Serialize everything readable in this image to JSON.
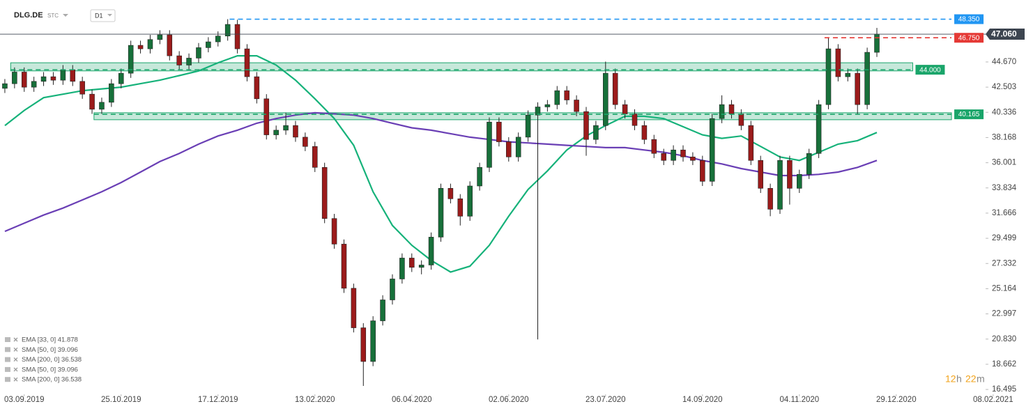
{
  "header": {
    "symbol": "DLG.DE",
    "market": "STC",
    "interval": "D1"
  },
  "countdown": {
    "hours": "12",
    "hours_unit": "h",
    "minutes": "22",
    "minutes_unit": "m"
  },
  "chart_data": {
    "type": "candlestick",
    "xlim": [
      -0.5,
      105.25
    ],
    "ylim": [
      16.08,
      49.88
    ],
    "xticks": [
      {
        "value": 2,
        "label": "03.09.2019"
      },
      {
        "value": 12,
        "label": "25.10.2019"
      },
      {
        "value": 22,
        "label": "17.12.2019"
      },
      {
        "value": 32,
        "label": "13.02.2020"
      },
      {
        "value": 42,
        "label": "06.04.2020"
      },
      {
        "value": 52,
        "label": "02.06.2020"
      },
      {
        "value": 62,
        "label": "23.07.2020"
      },
      {
        "value": 72,
        "label": "14.09.2020"
      },
      {
        "value": 82,
        "label": "04.11.2020"
      },
      {
        "value": 92,
        "label": "29.12.2020"
      },
      {
        "value": 102,
        "label": "08.02.2021"
      }
    ],
    "yticks": [
      16.495,
      18.662,
      {
        "value": 20.83,
        "label": "20.830"
      },
      22.997,
      25.164,
      27.332,
      29.499,
      31.666,
      33.834,
      36.001,
      38.168,
      40.336,
      42.503,
      {
        "value": 44.67,
        "label": "44.670"
      }
    ],
    "up_color": "#17703a",
    "down_color": "#9b1b1b",
    "open": [
      42.4,
      42.8,
      43.8,
      42.5,
      43.0,
      43.4,
      43.1,
      44.0,
      43.0,
      41.9,
      40.6,
      41.2,
      42.8,
      43.7,
      46.1,
      45.8,
      46.6,
      47.0,
      45.2,
      44.4,
      45.0,
      45.9,
      46.4,
      46.9,
      47.9,
      45.8,
      43.4,
      41.5,
      38.4,
      38.8,
      39.2,
      38.2,
      37.4,
      35.6,
      31.2,
      29.0,
      25.2,
      21.8,
      18.9,
      22.4,
      24.2,
      26.0,
      27.8,
      27.0,
      27.2,
      29.6,
      33.8,
      32.9,
      31.4,
      34.0,
      35.6,
      39.5,
      37.8,
      36.5,
      38.2,
      40.1,
      40.8,
      41.0,
      42.2,
      41.4,
      40.4,
      38.0,
      39.2,
      43.7,
      41.0,
      40.2,
      39.2,
      38.0,
      36.8,
      36.2,
      37.1,
      36.5,
      36.2,
      34.4,
      39.8,
      41.0,
      40.2,
      39.2,
      36.2,
      33.8,
      32.0,
      36.2,
      33.8,
      35.0,
      36.8,
      41.0,
      45.8,
      43.4,
      43.7,
      41.0,
      45.5
    ],
    "high": [
      43.2,
      44.2,
      44.2,
      43.4,
      43.8,
      43.8,
      44.4,
      44.4,
      43.4,
      42.3,
      41.6,
      43.2,
      44.1,
      46.5,
      46.5,
      47.0,
      47.4,
      47.4,
      45.6,
      45.4,
      46.3,
      46.8,
      47.3,
      48.35,
      48.3,
      46.2,
      43.8,
      41.9,
      39.2,
      40.3,
      39.6,
      38.6,
      37.8,
      36.0,
      31.6,
      29.4,
      25.6,
      22.2,
      22.8,
      24.6,
      26.4,
      28.2,
      28.2,
      27.6,
      30.0,
      34.2,
      34.2,
      33.3,
      34.4,
      36.0,
      39.9,
      39.9,
      38.2,
      38.6,
      40.5,
      41.2,
      41.4,
      42.6,
      42.6,
      41.8,
      40.8,
      39.6,
      44.7,
      44.1,
      41.4,
      40.6,
      39.6,
      38.4,
      37.2,
      37.5,
      37.5,
      36.9,
      36.6,
      40.2,
      41.8,
      41.4,
      40.6,
      39.6,
      36.6,
      34.2,
      36.6,
      36.6,
      35.4,
      37.2,
      41.4,
      46.75,
      46.2,
      44.1,
      44.1,
      45.9,
      47.6
    ],
    "low": [
      42.0,
      42.4,
      42.1,
      42.1,
      42.6,
      42.7,
      42.7,
      42.6,
      41.5,
      40.2,
      40.2,
      40.8,
      42.4,
      43.3,
      45.4,
      45.4,
      46.2,
      44.8,
      44.0,
      44.0,
      44.6,
      45.5,
      46.0,
      46.5,
      45.4,
      43.0,
      41.1,
      38.0,
      38.0,
      38.4,
      37.8,
      37.0,
      35.2,
      30.8,
      28.6,
      24.8,
      21.4,
      16.8,
      18.5,
      22.0,
      23.8,
      25.6,
      26.6,
      26.4,
      26.8,
      29.2,
      32.5,
      30.6,
      31.0,
      33.6,
      35.2,
      37.4,
      36.1,
      36.1,
      37.8,
      20.8,
      40.4,
      40.6,
      41.0,
      40.0,
      36.6,
      37.6,
      38.8,
      40.6,
      39.8,
      38.8,
      37.6,
      36.4,
      35.8,
      35.8,
      36.1,
      35.8,
      34.0,
      34.0,
      39.4,
      39.8,
      38.8,
      35.8,
      33.4,
      31.4,
      31.6,
      32.4,
      33.4,
      34.6,
      36.4,
      40.6,
      43.0,
      43.0,
      40.2,
      40.6,
      45.1
    ],
    "close": [
      42.8,
      43.8,
      42.5,
      43.0,
      43.4,
      43.1,
      44.0,
      43.0,
      41.9,
      40.6,
      41.2,
      42.8,
      43.7,
      46.1,
      45.8,
      46.6,
      47.0,
      45.2,
      44.4,
      45.0,
      45.9,
      46.4,
      46.9,
      47.9,
      45.8,
      43.4,
      41.5,
      38.4,
      38.8,
      39.2,
      38.2,
      37.4,
      35.6,
      31.2,
      29.0,
      25.2,
      21.8,
      18.9,
      22.4,
      24.2,
      26.0,
      27.8,
      27.0,
      27.2,
      29.6,
      33.8,
      32.9,
      31.4,
      34.0,
      35.6,
      39.5,
      37.8,
      36.5,
      38.2,
      40.1,
      40.8,
      41.0,
      42.2,
      41.4,
      40.4,
      38.0,
      39.2,
      43.7,
      41.0,
      40.2,
      39.2,
      38.0,
      36.8,
      36.2,
      37.1,
      36.5,
      36.2,
      34.4,
      39.8,
      41.0,
      40.2,
      39.2,
      36.2,
      33.8,
      32.0,
      36.2,
      33.8,
      35.0,
      36.8,
      41.0,
      45.8,
      43.4,
      43.7,
      41.0,
      45.5,
      47.06
    ],
    "lines_x": [
      0,
      2,
      4,
      6,
      8,
      10,
      12,
      14,
      16,
      18,
      20,
      22,
      24,
      26,
      28,
      30,
      32,
      34,
      36,
      38,
      40,
      42,
      44,
      46,
      48,
      50,
      52,
      54,
      56,
      58,
      60,
      62,
      64,
      66,
      68,
      70,
      72,
      74,
      76,
      78,
      80,
      82,
      84,
      86,
      88,
      90
    ],
    "lines": [
      {
        "name": "EMA 33",
        "color": "#16b27a",
        "values": [
          39.2,
          40.5,
          41.6,
          41.9,
          42.2,
          42.35,
          42.5,
          42.8,
          43.1,
          43.5,
          43.9,
          44.6,
          45.2,
          45.2,
          44.4,
          43.1,
          41.5,
          39.8,
          37.5,
          33.5,
          30.6,
          28.9,
          27.6,
          26.6,
          27.1,
          28.9,
          31.4,
          33.7,
          35.3,
          37.1,
          38.3,
          39.2,
          40.0,
          40.0,
          39.8,
          39.1,
          38.4,
          38.1,
          38.3,
          37.4,
          36.5,
          36.2,
          36.9,
          37.6,
          37.9,
          38.6
        ]
      },
      {
        "name": "SMA 200",
        "color": "#6a3fb5",
        "values": [
          30.1,
          30.8,
          31.5,
          32.1,
          32.8,
          33.5,
          34.3,
          35.2,
          36.1,
          36.8,
          37.6,
          38.3,
          38.8,
          39.4,
          39.8,
          40.1,
          40.3,
          40.2,
          40.1,
          39.8,
          39.4,
          39.0,
          38.8,
          38.5,
          38.2,
          38.0,
          37.8,
          37.7,
          37.6,
          37.5,
          37.4,
          37.3,
          37.3,
          37.1,
          36.9,
          36.6,
          36.2,
          35.9,
          35.5,
          35.2,
          34.9,
          34.9,
          35.0,
          35.2,
          35.6,
          36.2
        ]
      }
    ],
    "zones": [
      {
        "from": 43.9,
        "to": 44.6,
        "x_from": 0.6,
        "x_to": 93.7,
        "color": "#1aa56a"
      },
      {
        "from": 39.7,
        "to": 40.3,
        "x_from": 9.2,
        "x_to": 97.7,
        "color": "#1aa56a"
      }
    ],
    "levels": [
      {
        "value": 48.35,
        "label": "48.350",
        "color": "#2196f3",
        "x_from": 23.2,
        "x_to": 97.7
      },
      {
        "value": 46.75,
        "label": "46.750",
        "color": "#e53935",
        "x_from": 84.6,
        "x_to": 97.7
      },
      {
        "value": 44.0,
        "label": "44.000",
        "color": "#1aa56a",
        "x_from": 0.6,
        "x_to": 93.7
      },
      {
        "value": 40.165,
        "label": "40.165",
        "color": "#1aa56a",
        "x_from": 9.2,
        "x_to": 97.7
      }
    ],
    "current_price": {
      "value": 47.06,
      "label": "47.060",
      "color": "#3d4550"
    },
    "legend": [
      "EMA [33, 0] 41.878",
      "SMA [50, 0] 39.096",
      "SMA [200, 0] 36.538",
      "SMA [50, 0] 39.096",
      "SMA [200, 0] 36.538"
    ]
  }
}
